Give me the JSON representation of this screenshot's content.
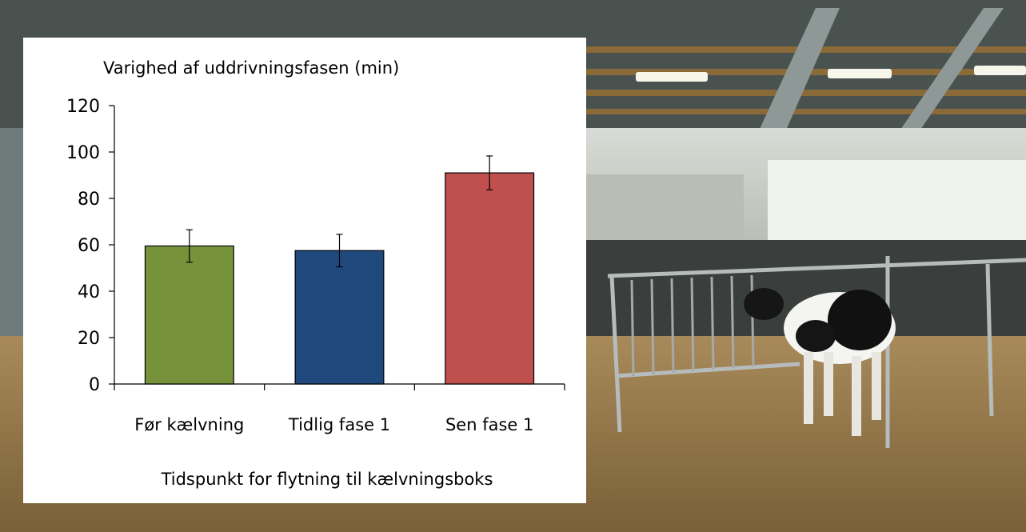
{
  "chart_data": {
    "type": "bar",
    "title": "Varighed af uddrivningsfasen (min)",
    "xlabel": "Tidspunkt for flytning til kælvningsboks",
    "ylabel": "",
    "categories": [
      "Før kælvning",
      "Tidlig fase 1",
      "Sen fase 1"
    ],
    "values": [
      59.5,
      57.5,
      91
    ],
    "errors": [
      7,
      7,
      7.3
    ],
    "colors": [
      "#76933C",
      "#1F497D",
      "#C0504D"
    ],
    "yticks": [
      0,
      20,
      40,
      60,
      80,
      100,
      120
    ],
    "ylim": [
      0,
      120
    ],
    "grid": false,
    "legend": "none"
  }
}
